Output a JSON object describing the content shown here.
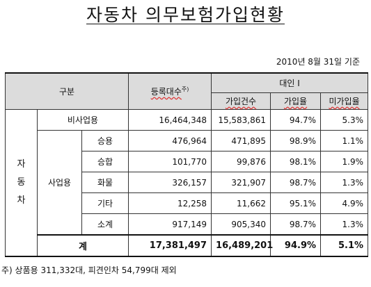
{
  "title": "자동차 의무보험가입현황",
  "basis_date": "2010년 8월 31일 기준",
  "headers": {
    "category": "구분",
    "registered": "등록대수",
    "registered_mark": "주)",
    "liability_group": "대인 I",
    "insured_count": "가입건수",
    "insured_rate": "가입율",
    "uninsured_rate": "미가입율"
  },
  "group_label": [
    "자",
    "동",
    "차"
  ],
  "commercial_label": "사업용",
  "rows": [
    {
      "label": "비사업용",
      "registered": "16,464,348",
      "insured": "15,583,861",
      "rate": "94.7%",
      "unrate": "5.3%"
    },
    {
      "label": "승용",
      "registered": "476,964",
      "insured": "471,895",
      "rate": "98.9%",
      "unrate": "1.1%"
    },
    {
      "label": "승합",
      "registered": "101,770",
      "insured": "99,876",
      "rate": "98.1%",
      "unrate": "1.9%"
    },
    {
      "label": "화물",
      "registered": "326,157",
      "insured": "321,907",
      "rate": "98.7%",
      "unrate": "1.3%"
    },
    {
      "label": "기타",
      "registered": "12,258",
      "insured": "11,662",
      "rate": "95.1%",
      "unrate": "4.9%"
    },
    {
      "label": "소계",
      "registered": "917,149",
      "insured": "905,340",
      "rate": "98.7%",
      "unrate": "1.3%"
    }
  ],
  "total": {
    "label": "계",
    "registered": "17,381,497",
    "insured": "16,489,201",
    "rate": "94.9%",
    "unrate": "5.1%"
  },
  "footnote": "주) 상품용 311,332대, 피견인차 54,799대 제외"
}
